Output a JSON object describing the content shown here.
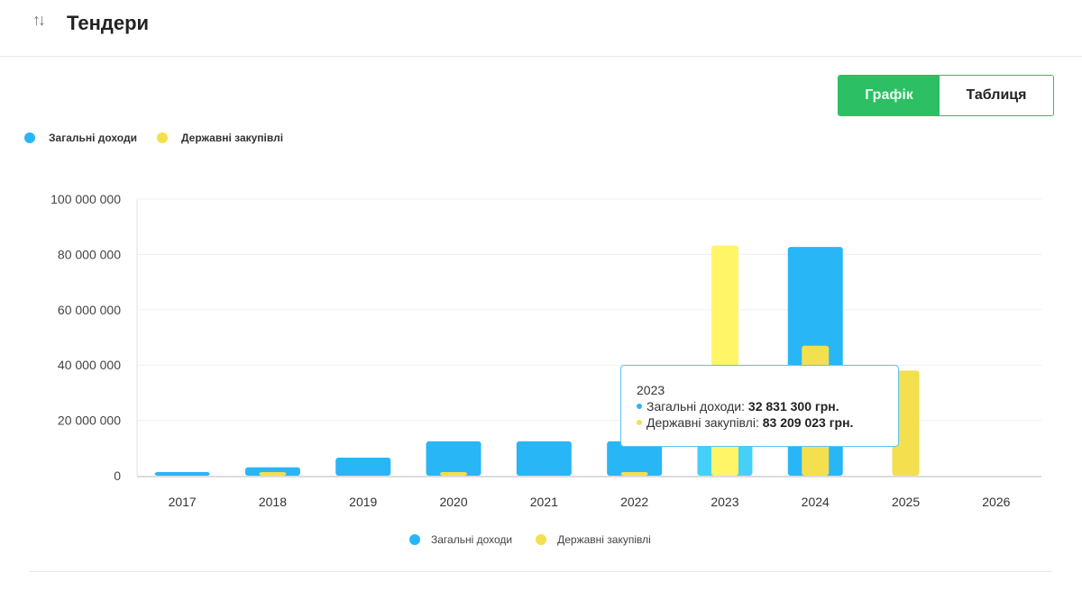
{
  "header": {
    "icon": "sort-arrows-icon",
    "icon_glyph": "↑↓",
    "title": "Тендери"
  },
  "view_toggle": {
    "chart_label": "Графік",
    "table_label": "Таблиця",
    "active": "chart",
    "accent_color": "#2dbf64"
  },
  "colors": {
    "income": "#29b6f6",
    "procurement": "#f4df4e",
    "procurement_highlight": "#fff566",
    "income_highlight": "#45d0fa"
  },
  "chart_data": {
    "type": "bar",
    "title": "",
    "xlabel": "",
    "ylabel": "",
    "ylim": [
      0,
      100000000
    ],
    "yticks": [
      0,
      20000000,
      40000000,
      60000000,
      80000000,
      100000000
    ],
    "ytick_labels": [
      "0",
      "20 000 000",
      "40 000 000",
      "60 000 000",
      "80 000 000",
      "100 000 000"
    ],
    "grid": true,
    "legend_position": "top-left and bottom-center",
    "categories": [
      "2017",
      "2018",
      "2019",
      "2020",
      "2021",
      "2022",
      "2023",
      "2024",
      "2025",
      "2026"
    ],
    "series": [
      {
        "name": "Загальні доходи",
        "key": "income",
        "values": [
          1300000,
          3000000,
          6500000,
          12400000,
          12400000,
          12400000,
          32831300,
          82700000,
          0,
          0
        ]
      },
      {
        "name": "Державні закупівлі",
        "key": "procurement",
        "values": [
          0,
          1300000,
          0,
          1300000,
          0,
          1300000,
          83209023,
          47000000,
          38000000,
          0
        ]
      }
    ],
    "highlighted_category": "2023"
  },
  "legend": {
    "items": [
      {
        "label": "Загальні доходи",
        "color": "#29b6f6"
      },
      {
        "label": "Державні закупівлі",
        "color": "#f4df4e"
      }
    ]
  },
  "tooltip": {
    "title": "2023",
    "rows": [
      {
        "label": "Загальні доходи: ",
        "value": "32 831 300 грн.",
        "color": "#29b6f6"
      },
      {
        "label": "Державні закупівлі: ",
        "value": "83 209 023 грн.",
        "color": "#f4df4e"
      }
    ]
  }
}
